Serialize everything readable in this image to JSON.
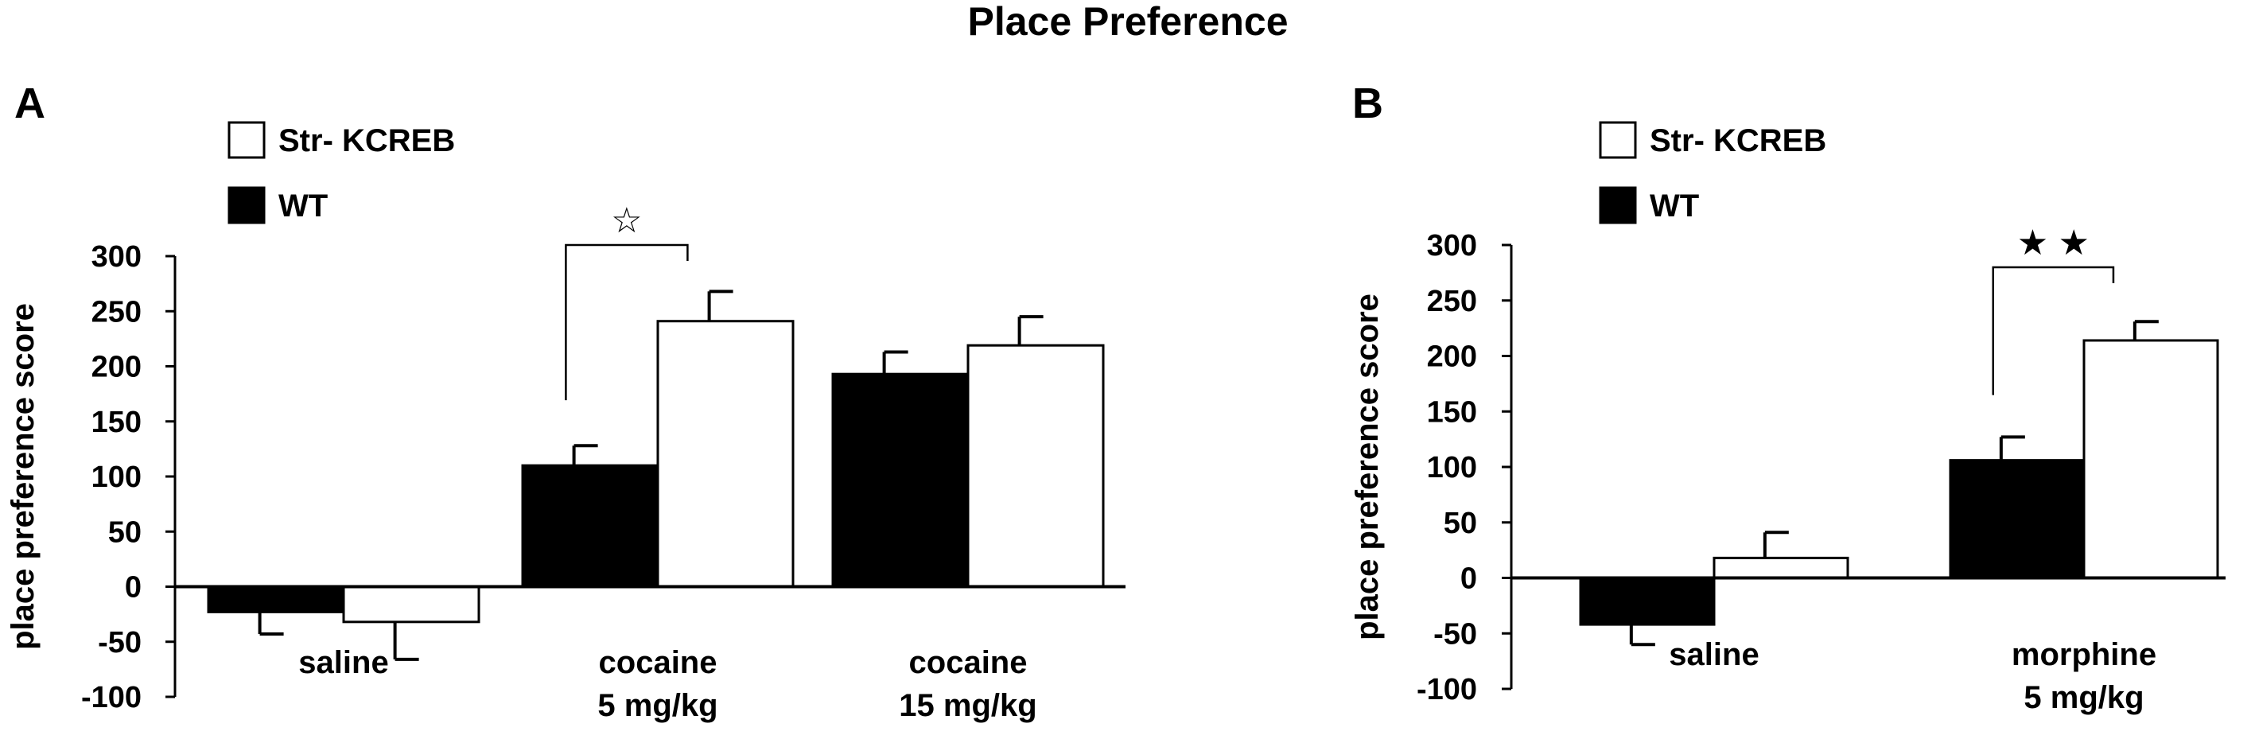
{
  "figure": {
    "title": "Place Preference"
  },
  "chart_data": [
    {
      "type": "bar",
      "panel_label": "A",
      "ylabel": "place preference score",
      "xlabel": "",
      "ylim": [
        -100,
        300
      ],
      "yticks": [
        300,
        250,
        200,
        150,
        100,
        50,
        0,
        -50,
        -100
      ],
      "grid": false,
      "legend_position": "top-left",
      "categories": [
        [
          "saline"
        ],
        [
          "cocaine",
          "5 mg/kg"
        ],
        [
          "cocaine",
          "15 mg/kg"
        ]
      ],
      "series": [
        {
          "name": "WT",
          "color": "#000000",
          "values": [
            -23,
            110,
            193
          ],
          "errors": [
            20,
            18,
            20
          ]
        },
        {
          "name": "Str- KCREB",
          "color": "#ffffff",
          "values": [
            -32,
            241,
            219
          ],
          "errors": [
            34,
            27,
            26
          ]
        }
      ],
      "significance": [
        {
          "category_index": 1,
          "symbol": "☆"
        }
      ]
    },
    {
      "type": "bar",
      "panel_label": "B",
      "ylabel": "place preference score",
      "xlabel": "",
      "ylim": [
        -100,
        300
      ],
      "yticks": [
        300,
        250,
        200,
        150,
        100,
        50,
        0,
        -50,
        -100
      ],
      "grid": false,
      "legend_position": "top-left",
      "categories": [
        [
          "saline"
        ],
        [
          "morphine",
          "5 mg/kg"
        ]
      ],
      "series": [
        {
          "name": "WT",
          "color": "#000000",
          "values": [
            -42,
            106
          ],
          "errors": [
            18,
            21
          ]
        },
        {
          "name": "Str- KCREB",
          "color": "#ffffff",
          "values": [
            18,
            214
          ],
          "errors": [
            23,
            17
          ]
        }
      ],
      "significance": [
        {
          "category_index": 1,
          "symbol": "★ ★"
        }
      ]
    }
  ]
}
